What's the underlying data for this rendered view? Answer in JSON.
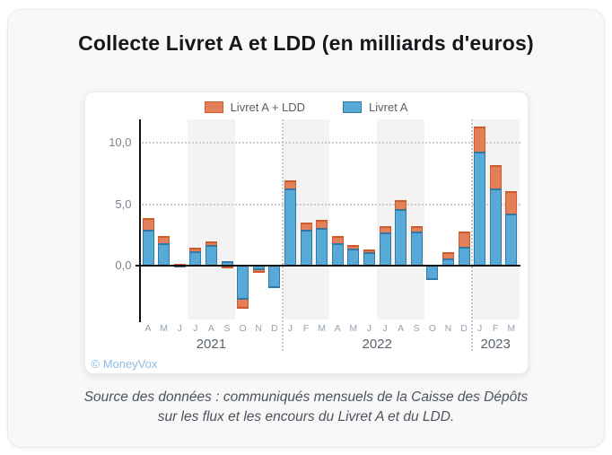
{
  "title": "Collecte Livret A et LDD (en milliards d'euros)",
  "watermark": "© MoneyVox",
  "source": {
    "line1": "Source des données : communiqués mensuels de la Caisse des Dépôts",
    "line2": "sur les flux et les encours du Livret A et du LDD."
  },
  "colors": {
    "total_fill": "#e2805a",
    "total_border": "#d05a2a",
    "livret_fill": "#57aad7",
    "livret_border": "#36789f",
    "axis": "#111111",
    "gridline": "#cbcbcb",
    "quarter_band": "#f3f3f4",
    "month_label": "#94a2b0",
    "year_label": "#59636e",
    "tick_label": "#7b828c"
  },
  "chart_data": {
    "type": "bar",
    "title": "Collecte Livret A et LDD",
    "unit": "milliards d'euros",
    "legend_position": "top",
    "grid": "horizontal dotted",
    "x": [
      "A",
      "M",
      "J",
      "J",
      "A",
      "S",
      "O",
      "N",
      "D",
      "J",
      "F",
      "M",
      "A",
      "M",
      "J",
      "J",
      "A",
      "S",
      "O",
      "N",
      "D",
      "J",
      "F",
      "M"
    ],
    "year_groups": [
      {
        "label": "2021",
        "start": 0,
        "end": 8
      },
      {
        "label": "2022",
        "start": 9,
        "end": 20
      },
      {
        "label": "2023",
        "start": 21,
        "end": 23
      }
    ],
    "yticks": [
      0,
      5,
      10
    ],
    "ytick_labels": [
      "0,0",
      "5,0",
      "10,0"
    ],
    "ylim": [
      -4.5,
      11.9
    ],
    "shaded_quarters": [
      [
        3,
        5
      ],
      [
        9,
        11
      ],
      [
        15,
        17
      ],
      [
        21,
        23
      ]
    ],
    "series": [
      {
        "name": "Livret A + LDD",
        "color": "#e2805a",
        "border_color": "#d05a2a",
        "values": [
          3.85,
          2.4,
          0.15,
          1.45,
          1.95,
          -0.25,
          -3.5,
          -0.6,
          -1.65,
          6.9,
          3.5,
          3.75,
          2.4,
          1.65,
          1.35,
          3.2,
          5.35,
          3.2,
          -0.95,
          1.1,
          2.8,
          11.3,
          8.2,
          6.05
        ]
      },
      {
        "name": "Livret A",
        "color": "#57aad7",
        "border_color": "#36789f",
        "values": [
          2.95,
          1.85,
          0.1,
          1.15,
          1.7,
          0.35,
          -2.8,
          -0.35,
          -1.8,
          6.3,
          2.9,
          3.1,
          1.85,
          1.4,
          1.1,
          2.7,
          4.6,
          2.75,
          -1.15,
          0.6,
          1.5,
          9.3,
          6.3,
          4.2
        ]
      }
    ]
  }
}
